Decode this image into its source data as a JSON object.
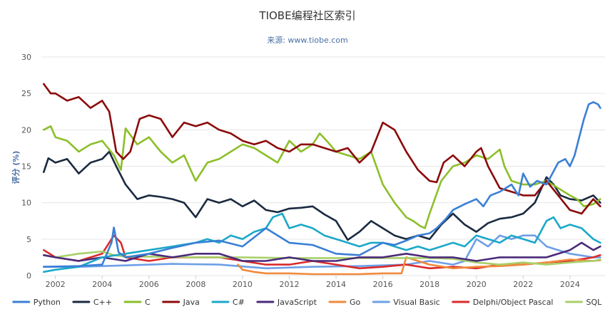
{
  "chart_data": {
    "type": "line",
    "title": "TIOBE编程社区索引",
    "subtitle": "来源: www.tiobe.com",
    "xlabel": "",
    "ylabel": "评分 (%)",
    "xlim": [
      2001.4,
      2025.5
    ],
    "ylim": [
      0,
      30
    ],
    "yticks": [
      "0",
      "5",
      "10",
      "15",
      "20",
      "25",
      "30"
    ],
    "xticks": [
      "2002",
      "2004",
      "2006",
      "2008",
      "2010",
      "2012",
      "2014",
      "2016",
      "2018",
      "2020",
      "2022",
      "2024"
    ],
    "grid": true,
    "legend": "bottom",
    "series": [
      {
        "name": "Python",
        "color": "#3a7fd5",
        "x": [
          2001.5,
          2003,
          2004,
          2004.4,
          2004.5,
          2004.7,
          2005,
          2006,
          2007,
          2008,
          2009,
          2010,
          2011,
          2012,
          2013,
          2014,
          2015,
          2016,
          2016.5,
          2017,
          2017.5,
          2018,
          2018.3,
          2018.7,
          2019,
          2019.5,
          2020,
          2020.3,
          2020.6,
          2021,
          2021.5,
          2021.8,
          2022,
          2022.3,
          2022.6,
          2023,
          2023.5,
          2023.8,
          2024,
          2024.2,
          2024.4,
          2024.6,
          2024.8,
          2025,
          2025.2,
          2025.3
        ],
        "y": [
          1.2,
          1.3,
          1.5,
          4.5,
          6.6,
          3.2,
          2.5,
          3.0,
          3.8,
          4.5,
          4.8,
          4.0,
          6.5,
          4.5,
          4.2,
          3.0,
          2.8,
          4.5,
          4.2,
          4.8,
          5.5,
          5.8,
          6.5,
          7.8,
          9.0,
          9.8,
          10.5,
          9.5,
          11.0,
          11.5,
          12.5,
          11.0,
          14.0,
          12.2,
          13.0,
          12.5,
          15.5,
          16.0,
          15.0,
          16.5,
          19.0,
          21.5,
          23.5,
          23.8,
          23.5,
          23.0
        ]
      },
      {
        "name": "C++",
        "color": "#1a2a40",
        "x": [
          2001.5,
          2001.7,
          2002,
          2002.5,
          2003,
          2003.5,
          2004,
          2004.3,
          2004.6,
          2005,
          2005.5,
          2006,
          2006.5,
          2007,
          2007.5,
          2008,
          2008.5,
          2009,
          2009.5,
          2010,
          2010.5,
          2011,
          2011.5,
          2012,
          2012.5,
          2013,
          2013.5,
          2014,
          2014.5,
          2015,
          2015.5,
          2016,
          2016.5,
          2017,
          2017.5,
          2018,
          2018.5,
          2019,
          2019.5,
          2020,
          2020.5,
          2021,
          2021.5,
          2022,
          2022.5,
          2023,
          2023.3,
          2023.6,
          2024,
          2024.5,
          2025,
          2025.3
        ],
        "y": [
          14.2,
          16.1,
          15.5,
          16.0,
          14.0,
          15.5,
          16.0,
          17.0,
          15.0,
          12.5,
          10.5,
          11.0,
          10.8,
          10.5,
          10.0,
          8.0,
          10.5,
          10.0,
          10.5,
          9.5,
          10.3,
          9.0,
          8.7,
          9.2,
          9.3,
          9.5,
          8.4,
          7.5,
          4.9,
          6.0,
          7.5,
          6.5,
          5.5,
          5.0,
          5.5,
          5.0,
          7.0,
          8.5,
          7.0,
          6.0,
          7.2,
          7.8,
          8.0,
          8.5,
          10.0,
          13.5,
          12.5,
          11.0,
          10.5,
          10.3,
          11.0,
          10.0
        ]
      },
      {
        "name": "C",
        "color": "#8cbf2a",
        "x": [
          2001.5,
          2001.8,
          2002,
          2002.5,
          2003,
          2003.5,
          2004,
          2004.5,
          2004.8,
          2005,
          2005.5,
          2006,
          2006.5,
          2007,
          2007.5,
          2008,
          2008.5,
          2009,
          2009.5,
          2010,
          2010.5,
          2011,
          2011.5,
          2012,
          2012.5,
          2013,
          2013.3,
          2013.6,
          2014,
          2014.5,
          2015,
          2015.5,
          2016,
          2016.5,
          2017,
          2017.3,
          2017.6,
          2017.8,
          2018,
          2018.5,
          2019,
          2019.5,
          2020,
          2020.5,
          2021,
          2021.2,
          2021.5,
          2022,
          2022.5,
          2023,
          2023.5,
          2024,
          2024.3,
          2024.6,
          2025,
          2025.3
        ],
        "y": [
          20.0,
          20.5,
          19.0,
          18.5,
          17.0,
          18.0,
          18.5,
          16.5,
          14.5,
          20.2,
          18.0,
          19.0,
          17.0,
          15.5,
          16.5,
          13.0,
          15.5,
          16.0,
          17.0,
          18.0,
          17.5,
          16.5,
          15.5,
          18.5,
          17.0,
          18.0,
          19.5,
          18.5,
          17.0,
          16.5,
          16.0,
          17.0,
          12.5,
          10.0,
          8.0,
          7.5,
          6.8,
          6.5,
          8.5,
          13.0,
          15.0,
          15.5,
          16.5,
          16.0,
          17.3,
          15.0,
          13.0,
          12.5,
          12.5,
          13.0,
          12.0,
          11.0,
          10.5,
          9.5,
          9.8,
          10.5
        ]
      },
      {
        "name": "Java",
        "color": "#8b0a0a",
        "x": [
          2001.5,
          2001.8,
          2002,
          2002.5,
          2003,
          2003.5,
          2004,
          2004.3,
          2004.6,
          2004.9,
          2005.2,
          2005.6,
          2006,
          2006.5,
          2007,
          2007.5,
          2008,
          2008.5,
          2009,
          2009.5,
          2010,
          2010.5,
          2011,
          2011.5,
          2012,
          2012.5,
          2013,
          2013.5,
          2014,
          2014.5,
          2015,
          2015.5,
          2016,
          2016.5,
          2017,
          2017.5,
          2018,
          2018.3,
          2018.6,
          2019,
          2019.5,
          2020,
          2020.2,
          2020.5,
          2021,
          2021.5,
          2022,
          2022.5,
          2023,
          2023.5,
          2024,
          2024.5,
          2025,
          2025.3
        ],
        "y": [
          26.3,
          25.0,
          25.0,
          24.0,
          24.5,
          23.0,
          24.0,
          22.5,
          17.0,
          16.0,
          17.0,
          21.5,
          22.0,
          21.5,
          19.0,
          21.0,
          20.5,
          21.0,
          20.0,
          19.5,
          18.5,
          18.0,
          18.5,
          17.5,
          17.0,
          18.0,
          18.0,
          17.5,
          17.0,
          17.5,
          15.5,
          17.0,
          21.0,
          20.0,
          17.0,
          14.5,
          13.0,
          12.8,
          15.5,
          16.5,
          15.0,
          17.0,
          17.5,
          15.0,
          12.0,
          11.5,
          11.0,
          11.0,
          13.0,
          11.0,
          9.0,
          8.5,
          10.5,
          9.5
        ]
      },
      {
        "name": "C#",
        "color": "#1ba8c9",
        "x": [
          2001.5,
          2002,
          2003,
          2004,
          2005,
          2006,
          2007,
          2008,
          2008.5,
          2009,
          2009.5,
          2010,
          2010.5,
          2011,
          2011.3,
          2011.7,
          2012,
          2012.5,
          2013,
          2013.5,
          2014,
          2014.5,
          2015,
          2015.5,
          2016,
          2016.5,
          2017,
          2017.5,
          2018,
          2018.5,
          2019,
          2019.5,
          2020,
          2020.5,
          2021,
          2021.5,
          2022,
          2022.5,
          2023,
          2023.3,
          2023.6,
          2024,
          2024.5,
          2025,
          2025.3
        ],
        "y": [
          0.5,
          0.8,
          1.2,
          2.5,
          3.0,
          3.5,
          4.0,
          4.5,
          5.0,
          4.5,
          5.5,
          5.0,
          6.0,
          6.5,
          8.0,
          8.5,
          6.5,
          7.0,
          6.5,
          5.5,
          5.0,
          4.5,
          4.0,
          4.5,
          4.5,
          4.0,
          3.5,
          4.0,
          3.5,
          4.0,
          4.5,
          4.0,
          5.5,
          5.0,
          4.5,
          5.5,
          5.0,
          4.5,
          7.5,
          8.0,
          6.5,
          7.0,
          6.5,
          5.0,
          4.5
        ]
      },
      {
        "name": "JavaScript",
        "color": "#4a2a7a",
        "x": [
          2001.5,
          2002,
          2003,
          2004,
          2005,
          2006,
          2007,
          2008,
          2009,
          2010,
          2011,
          2012,
          2013,
          2014,
          2015,
          2016,
          2017,
          2018,
          2019,
          2020,
          2021,
          2022,
          2023,
          2024,
          2024.5,
          2025,
          2025.3
        ],
        "y": [
          2.8,
          2.5,
          2.0,
          2.5,
          2.0,
          3.0,
          2.5,
          3.0,
          3.0,
          2.0,
          2.0,
          2.5,
          2.0,
          2.0,
          2.5,
          2.5,
          3.0,
          2.5,
          2.5,
          2.0,
          2.5,
          2.5,
          2.5,
          3.5,
          4.5,
          3.5,
          4.0
        ]
      },
      {
        "name": "Go",
        "color": "#f08a3c",
        "x": [
          2009.8,
          2010,
          2010.5,
          2011,
          2012,
          2013,
          2014,
          2015,
          2016,
          2016.8,
          2017,
          2017.5,
          2018,
          2019,
          2020,
          2021,
          2022,
          2023,
          2024,
          2025,
          2025.3
        ],
        "y": [
          1.5,
          0.8,
          0.5,
          0.3,
          0.3,
          0.2,
          0.2,
          0.2,
          0.3,
          0.3,
          2.5,
          2.0,
          1.5,
          1.0,
          1.2,
          1.3,
          1.5,
          1.8,
          2.2,
          2.0,
          2.1
        ]
      },
      {
        "name": "Visual Basic",
        "color": "#6e9fe6",
        "x": [
          2001.5,
          2003,
          2005,
          2007,
          2009,
          2011,
          2013,
          2015,
          2017,
          2018,
          2019,
          2019.5,
          2020,
          2020.5,
          2021,
          2021.5,
          2022,
          2022.5,
          2023,
          2023.5,
          2024,
          2025,
          2025.3
        ],
        "y": [
          1.2,
          1.2,
          1.4,
          1.6,
          1.5,
          1.0,
          1.2,
          1.3,
          1.5,
          2.0,
          1.5,
          2.0,
          5.0,
          4.0,
          5.5,
          5.0,
          5.5,
          5.5,
          4.0,
          3.5,
          3.0,
          2.5,
          2.5
        ]
      },
      {
        "name": "Delphi/Object Pascal",
        "color": "#d92b2b",
        "x": [
          2001.5,
          2002,
          2003,
          2004,
          2004.5,
          2004.8,
          2005,
          2006,
          2007,
          2008,
          2009,
          2010,
          2011,
          2012,
          2013,
          2014,
          2015,
          2016,
          2017,
          2018,
          2019,
          2020,
          2021,
          2022,
          2023,
          2024,
          2025,
          2025.3
        ],
        "y": [
          3.5,
          2.5,
          2.0,
          3.0,
          5.5,
          4.5,
          2.5,
          2.0,
          2.5,
          2.5,
          2.5,
          2.0,
          1.5,
          1.5,
          2.0,
          1.5,
          1.0,
          1.2,
          1.5,
          1.0,
          1.2,
          1.0,
          1.5,
          1.5,
          1.8,
          2.0,
          2.5,
          2.8
        ]
      },
      {
        "name": "SQL",
        "color": "#a8d06a",
        "x": [
          2001.5,
          2002,
          2003,
          2004,
          2004.5,
          2005,
          2006,
          2008,
          2010,
          2012,
          2014,
          2016,
          2018,
          2019,
          2020,
          2021,
          2022,
          2023,
          2024,
          2025,
          2025.3
        ],
        "y": [
          2.8,
          2.5,
          3.0,
          3.3,
          2.8,
          2.6,
          2.6,
          2.5,
          2.5,
          2.4,
          2.4,
          2.4,
          2.4,
          2.3,
          1.8,
          1.5,
          1.8,
          1.5,
          1.8,
          2.0,
          2.2
        ]
      }
    ]
  }
}
